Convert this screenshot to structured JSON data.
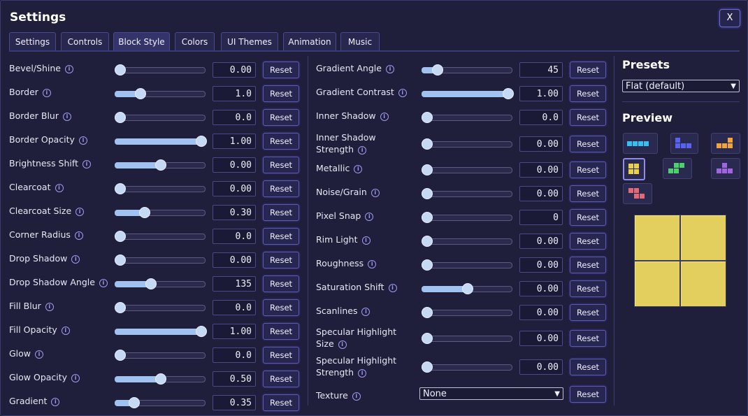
{
  "window": {
    "title": "Settings",
    "close_label": "X"
  },
  "tabs": [
    {
      "label": "Settings"
    },
    {
      "label": "Controls"
    },
    {
      "label": "Block Style",
      "active": true
    },
    {
      "label": "Colors"
    },
    {
      "label": "UI Themes"
    },
    {
      "label": "Animation"
    },
    {
      "label": "Music"
    }
  ],
  "reset_label": "Reset",
  "info_glyph": "i",
  "left_settings": [
    {
      "label": "Bevel/Shine",
      "value": "0.00",
      "level": 0
    },
    {
      "label": "Border",
      "value": "1.0",
      "level": 0.25
    },
    {
      "label": "Border Blur",
      "value": "0.0",
      "level": 0
    },
    {
      "label": "Border Opacity",
      "value": "1.00",
      "level": 1
    },
    {
      "label": "Brightness Shift",
      "value": "0.00",
      "level": 0.5
    },
    {
      "label": "Clearcoat",
      "value": "0.00",
      "level": 0
    },
    {
      "label": "Clearcoat Size",
      "value": "0.30",
      "level": 0.3
    },
    {
      "label": "Corner Radius",
      "value": "0.0",
      "level": 0
    },
    {
      "label": "Drop Shadow",
      "value": "0.00",
      "level": 0
    },
    {
      "label": "Drop Shadow Angle",
      "value": "135",
      "level": 0.375
    },
    {
      "label": "Fill Blur",
      "value": "0.0",
      "level": 0
    },
    {
      "label": "Fill Opacity",
      "value": "1.00",
      "level": 1
    },
    {
      "label": "Glow",
      "value": "0.0",
      "level": 0
    },
    {
      "label": "Glow Opacity",
      "value": "0.50",
      "level": 0.5
    },
    {
      "label": "Gradient",
      "value": "0.35",
      "level": 0.17
    }
  ],
  "right_settings": [
    {
      "label": "Gradient Angle",
      "value": "45",
      "level": 0.125
    },
    {
      "label": "Gradient Contrast",
      "value": "1.00",
      "level": 1
    },
    {
      "label": "Inner Shadow",
      "value": "0.0",
      "level": 0
    },
    {
      "label": "Inner Shadow Strength",
      "label_line1": "Inner Shadow",
      "label_line2": "Strength",
      "value": "0.00",
      "level": 0
    },
    {
      "label": "Metallic",
      "value": "0.00",
      "level": 0
    },
    {
      "label": "Noise/Grain",
      "value": "0.00",
      "level": 0
    },
    {
      "label": "Pixel Snap",
      "value": "0",
      "level": 0
    },
    {
      "label": "Rim Light",
      "value": "0.00",
      "level": 0
    },
    {
      "label": "Roughness",
      "value": "0.00",
      "level": 0
    },
    {
      "label": "Saturation Shift",
      "value": "0.00",
      "level": 0.5
    },
    {
      "label": "Scanlines",
      "value": "0.00",
      "level": 0
    },
    {
      "label": "Specular Highlight Size",
      "label_line1": "Specular Highlight",
      "label_line2": "Size",
      "value": "0.00",
      "level": 0
    },
    {
      "label": "Specular Highlight Strength",
      "label_line1": "Specular Highlight",
      "label_line2": "Strength",
      "value": "0.00",
      "level": 0
    }
  ],
  "texture": {
    "label": "Texture",
    "value": "None"
  },
  "presets": {
    "heading": "Presets",
    "selected": "Flat (default)"
  },
  "preview": {
    "heading": "Preview"
  },
  "colors": {
    "accent": "#9fc2f0",
    "piece_i": "#35c1f0",
    "piece_j": "#5a63f0",
    "piece_l": "#f0a43c",
    "piece_o": "#e8d04a",
    "piece_s": "#4cd26a",
    "piece_t": "#a066e0",
    "piece_z": "#e06a78"
  }
}
